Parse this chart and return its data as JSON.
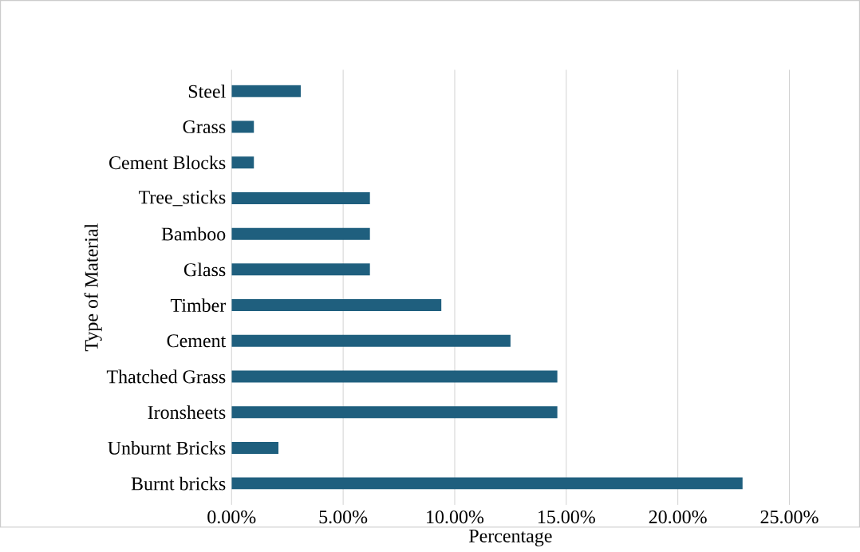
{
  "chart_data": {
    "type": "bar",
    "orientation": "horizontal",
    "xlabel": "Percentage",
    "ylabel": "Type of Material",
    "categories": [
      "Steel",
      "Grass",
      "Cement Blocks",
      "Tree_sticks",
      "Bamboo",
      "Glass",
      "Timber",
      "Cement",
      "Thatched Grass",
      "Ironsheets",
      "Unburnt Bricks",
      "Burnt bricks"
    ],
    "values": [
      3.1,
      1.0,
      1.0,
      6.2,
      6.2,
      6.2,
      9.4,
      12.5,
      14.6,
      14.6,
      2.1,
      22.9
    ],
    "color": "#1f5f7e",
    "xlim": [
      0,
      25
    ],
    "xticks": [
      {
        "value": 0,
        "label": "0.00%"
      },
      {
        "value": 5,
        "label": "5.00%"
      },
      {
        "value": 10,
        "label": "10.00%"
      },
      {
        "value": 15,
        "label": "15.00%"
      },
      {
        "value": 20,
        "label": "20.00%"
      },
      {
        "value": 25,
        "label": "25.00%"
      }
    ],
    "grid": "x"
  }
}
